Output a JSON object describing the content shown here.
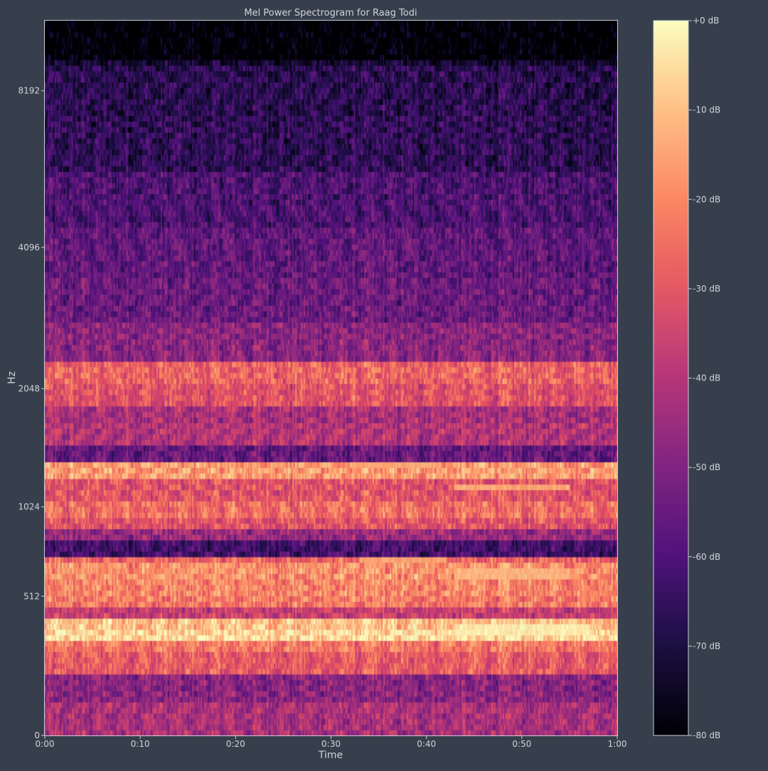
{
  "chart_data": {
    "type": "heatmap",
    "title": "Mel Power Spectrogram for Raag Todi",
    "xlabel": "Time",
    "ylabel": "Hz",
    "x_ticks": [
      "0:00",
      "0:10",
      "0:20",
      "0:30",
      "0:40",
      "0:50",
      "1:00"
    ],
    "x_tick_seconds": [
      0,
      10,
      20,
      30,
      40,
      50,
      60
    ],
    "xlim": [
      0,
      60
    ],
    "y_ticks": [
      "0",
      "512",
      "1024",
      "2048",
      "4096",
      "8192"
    ],
    "y_tick_hz": [
      0,
      512,
      1024,
      2048,
      4096,
      8192
    ],
    "ylim": [
      0,
      11025
    ],
    "y_scale": "mel",
    "colorbar": {
      "ticks": [
        "+0 dB",
        "-10 dB",
        "-20 dB",
        "-30 dB",
        "-40 dB",
        "-50 dB",
        "-60 dB",
        "-70 dB",
        "-80 dB"
      ],
      "tick_values": [
        0,
        -10,
        -20,
        -30,
        -40,
        -50,
        -60,
        -70,
        -80
      ],
      "range": [
        -80,
        0
      ],
      "colormap": "magma"
    },
    "bands": [
      {
        "hz": 60,
        "db": -42
      },
      {
        "hz": 150,
        "db": -48
      },
      {
        "hz": 235,
        "db": -28
      },
      {
        "hz": 300,
        "db": -22
      },
      {
        "hz": 355,
        "db": -6
      },
      {
        "hz": 385,
        "db": -10
      },
      {
        "hz": 440,
        "db": -36
      },
      {
        "hz": 495,
        "db": -22
      },
      {
        "hz": 560,
        "db": -20
      },
      {
        "hz": 650,
        "db": -18
      },
      {
        "hz": 700,
        "db": -26
      },
      {
        "hz": 760,
        "db": -62
      },
      {
        "hz": 840,
        "db": -45
      },
      {
        "hz": 930,
        "db": -30
      },
      {
        "hz": 1000,
        "db": -24
      },
      {
        "hz": 1120,
        "db": -30
      },
      {
        "hz": 1300,
        "db": -16
      },
      {
        "hz": 1450,
        "db": -55
      },
      {
        "hz": 1600,
        "db": -40
      },
      {
        "hz": 1800,
        "db": -42
      },
      {
        "hz": 1950,
        "db": -30
      },
      {
        "hz": 2200,
        "db": -26
      },
      {
        "hz": 2600,
        "db": -48
      },
      {
        "hz": 3200,
        "db": -54
      },
      {
        "hz": 4000,
        "db": -56
      },
      {
        "hz": 5000,
        "db": -60
      },
      {
        "hz": 6500,
        "db": -66
      },
      {
        "hz": 8500,
        "db": -67
      },
      {
        "hz": 10500,
        "db": -76
      }
    ],
    "events": [
      {
        "t_start": 43,
        "t_end": 57,
        "hz_low": 340,
        "hz_high": 380,
        "db": -3
      },
      {
        "t_start": 43,
        "t_end": 55,
        "hz_low": 610,
        "hz_high": 650,
        "db": -12
      },
      {
        "t_start": 43,
        "t_end": 55,
        "hz_low": 1130,
        "hz_high": 1180,
        "db": -14
      },
      {
        "t_start": 32,
        "t_end": 41,
        "hz_low": 1300,
        "hz_high": 1340,
        "db": -14
      },
      {
        "t_start": 33,
        "t_end": 42,
        "hz_low": 700,
        "hz_high": 720,
        "db": -15
      }
    ]
  }
}
